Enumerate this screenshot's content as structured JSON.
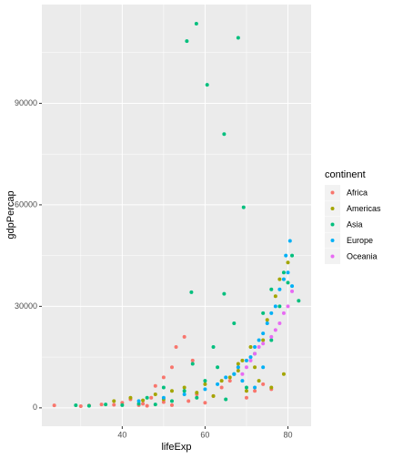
{
  "chart_data": {
    "type": "scatter",
    "x_label": "lifeExp",
    "y_label": "gdpPercap",
    "legend_title": "continent",
    "legend_position": "right",
    "grid": true,
    "xlim": [
      20.6,
      85.6
    ],
    "xticks": [
      40,
      60,
      80
    ],
    "ylim": [
      -5423,
      119187
    ],
    "yticks": [
      0,
      30000,
      60000,
      90000
    ],
    "series": [
      {
        "name": "Africa",
        "color": "#F8766D",
        "x": [
          23.6,
          30,
          32,
          35,
          38,
          40,
          42,
          44,
          45,
          47,
          48,
          50,
          52,
          53,
          55,
          56,
          58,
          60,
          62,
          64,
          66,
          68,
          70,
          72,
          74,
          76,
          50,
          46,
          52,
          57
        ],
        "values": [
          737,
          485,
          700,
          1000,
          900,
          1500,
          2500,
          800,
          1200,
          3000,
          6500,
          1700,
          12000,
          18000,
          21000,
          2000,
          4000,
          1500,
          3500,
          6000,
          8000,
          12000,
          3000,
          5000,
          7000,
          5500,
          9000,
          600,
          800,
          14000
        ]
      },
      {
        "name": "Americas",
        "color": "#A3A500",
        "x": [
          38,
          42,
          45,
          48,
          50,
          52,
          55,
          58,
          60,
          62,
          64,
          66,
          68,
          69,
          70,
          72,
          73,
          74,
          75,
          76,
          77,
          78,
          79,
          80,
          68,
          71
        ],
        "values": [
          2000,
          3000,
          2200,
          4000,
          2500,
          5000,
          6000,
          4500,
          7000,
          3500,
          8000,
          9000,
          11000,
          14000,
          5000,
          12000,
          8000,
          20000,
          26000,
          6000,
          33000,
          38000,
          10000,
          42952,
          13000,
          18000
        ]
      },
      {
        "name": "Asia",
        "color": "#00BF7D",
        "x": [
          55.6,
          57.9,
          68,
          60.5,
          64.6,
          69.3,
          56.7,
          64.6,
          28.8,
          32,
          36,
          40,
          44,
          46,
          48,
          50,
          52,
          55,
          57,
          58,
          60,
          62,
          65,
          67,
          70,
          72,
          74,
          76,
          78,
          80,
          82.6,
          81,
          63,
          67,
          79,
          76
        ],
        "values": [
          108382,
          113523,
          109348,
          95458,
          80894,
          59265,
          34168,
          33693,
          779,
          600,
          1000,
          800,
          1200,
          3000,
          1000,
          6000,
          2000,
          5000,
          13000,
          3000,
          8000,
          18000,
          2500,
          10000,
          6000,
          16000,
          28000,
          35000,
          30000,
          37000,
          31656,
          45000,
          12000,
          25000,
          40000,
          20000
        ]
      },
      {
        "name": "Europe",
        "color": "#00B0F6",
        "x": [
          44,
          50,
          55,
          60,
          63,
          65,
          67,
          68,
          69,
          70,
          71,
          72,
          73,
          74,
          75,
          76,
          77,
          78,
          79,
          80,
          80.5,
          81,
          79.5,
          72,
          74
        ],
        "values": [
          2000,
          3000,
          4000,
          5500,
          7000,
          9000,
          10000,
          12000,
          8000,
          14000,
          15000,
          18000,
          20000,
          22000,
          25000,
          28000,
          30000,
          35000,
          38000,
          40000,
          49357,
          36000,
          45000,
          6000,
          12000
        ]
      },
      {
        "name": "Oceania",
        "color": "#E76BF3",
        "x": [
          69,
          70,
          71,
          72,
          73,
          74,
          76,
          77,
          78,
          79,
          80,
          81
        ],
        "values": [
          10000,
          12000,
          14000,
          16000,
          18000,
          19000,
          21000,
          23000,
          25000,
          28000,
          30000,
          34435
        ]
      }
    ]
  }
}
